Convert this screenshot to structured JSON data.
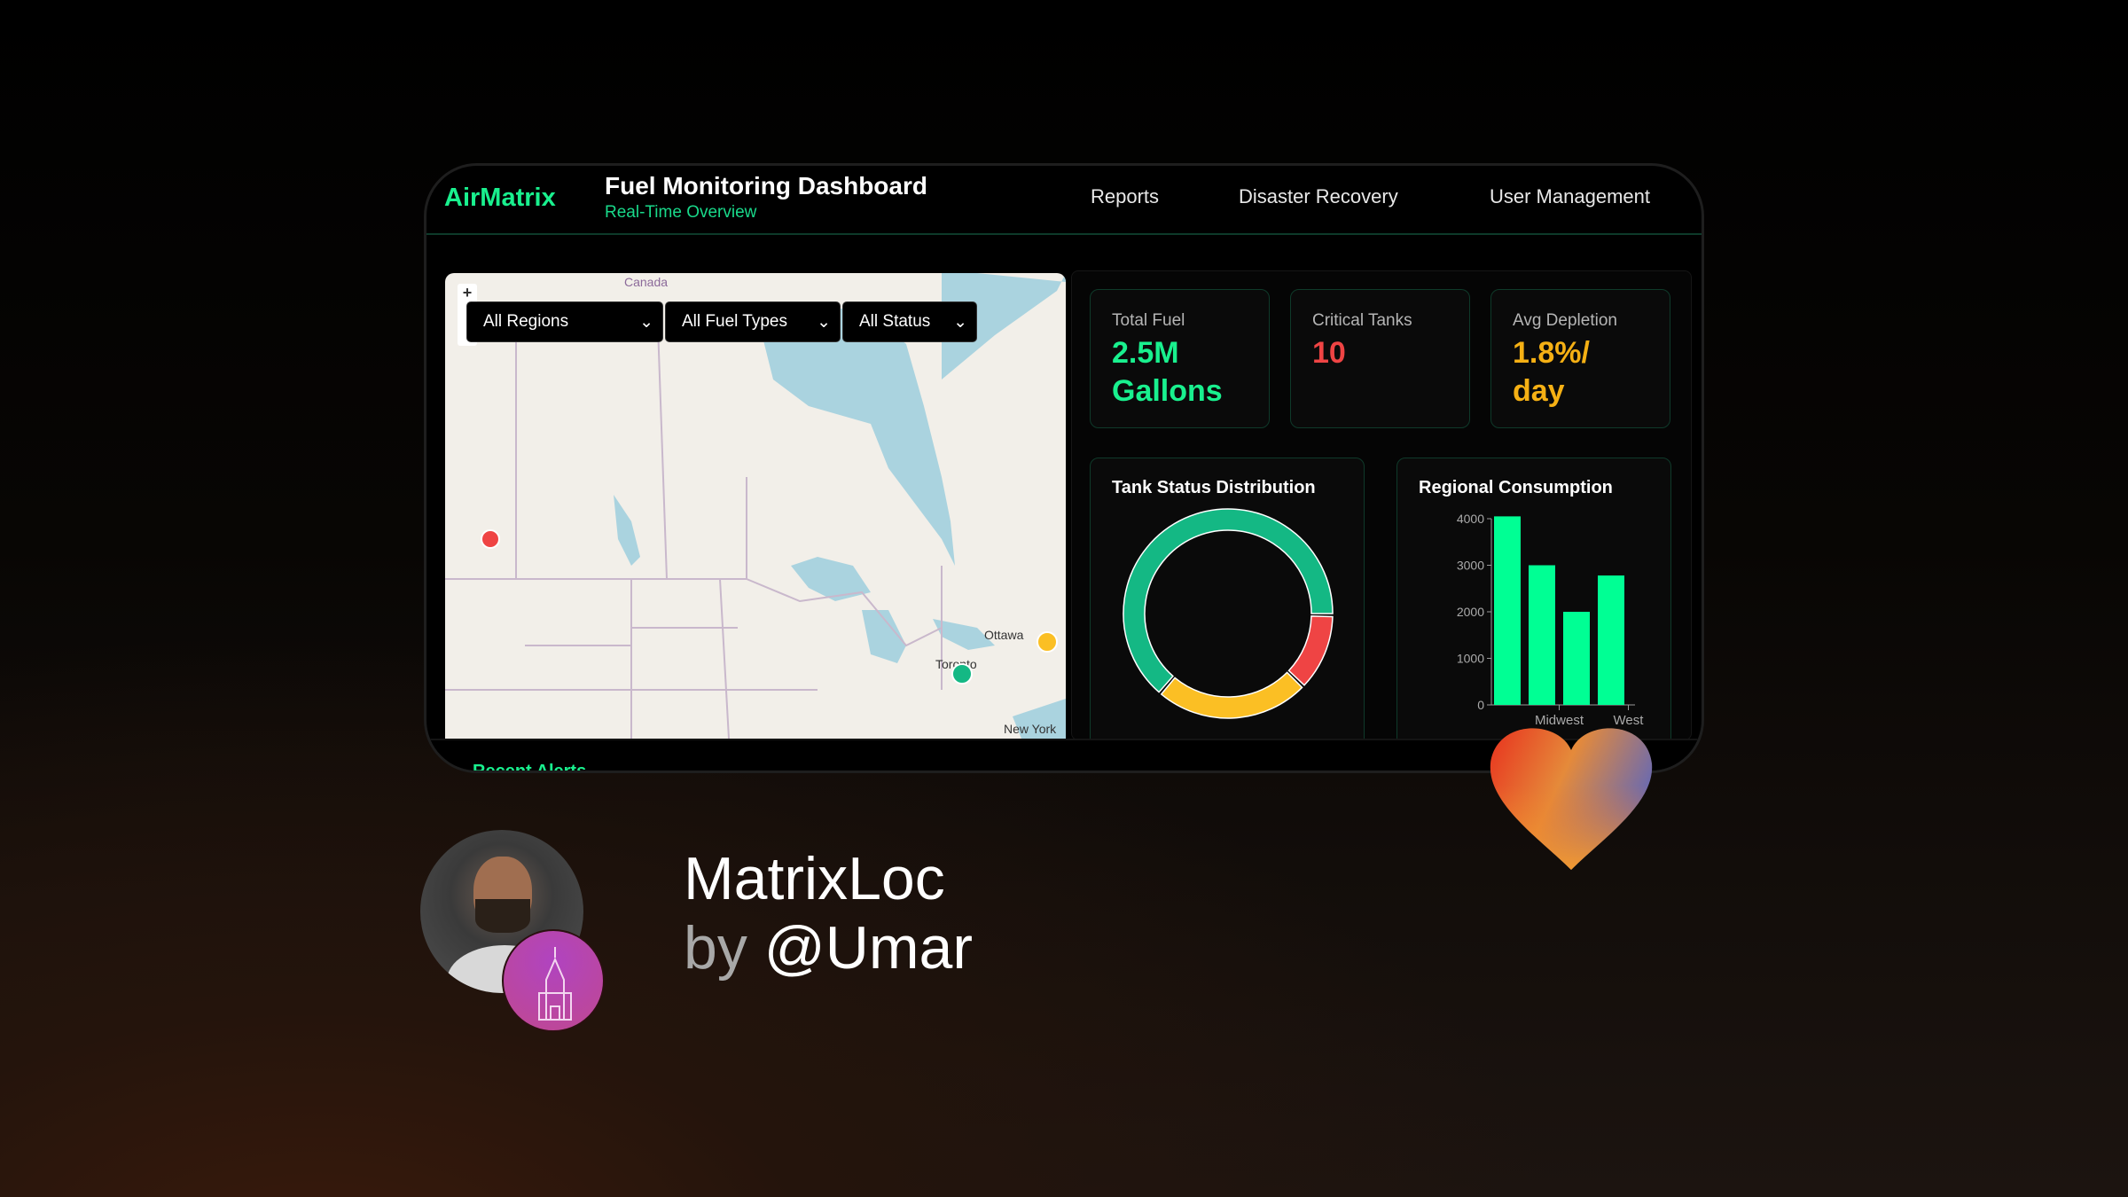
{
  "header": {
    "logo": "AirMatrix",
    "title": "Fuel Monitoring Dashboard",
    "subtitle": "Real-Time Overview",
    "nav": [
      "Reports",
      "Disaster Recovery",
      "User Management"
    ]
  },
  "map": {
    "filters": [
      "All Regions",
      "All Fuel Types",
      "All Status"
    ],
    "zoom_in": "+",
    "labels": {
      "country": "Canada",
      "city1": "Ottawa",
      "city2": "Toronto",
      "city3": "New York"
    },
    "markers": [
      {
        "status": "critical",
        "color": "#ef4444"
      },
      {
        "status": "warning",
        "color": "#fbbf24"
      },
      {
        "status": "normal",
        "color": "#14b884"
      }
    ]
  },
  "stats": [
    {
      "label": "Total Fuel",
      "value": "2.5M Gallons",
      "color": "#19f08e"
    },
    {
      "label": "Critical Tanks",
      "value": "10",
      "color": "#ef4444"
    },
    {
      "label": "Avg Depletion",
      "value": "1.8%/ day",
      "color": "#f5b014"
    }
  ],
  "chart_data": [
    {
      "type": "pie",
      "title": "Tank Status Distribution",
      "donut": true,
      "slices": [
        {
          "value": 64,
          "color": "#14b884"
        },
        {
          "value": 24,
          "color": "#fbbf24"
        },
        {
          "value": 12,
          "color": "#ef4444"
        }
      ]
    },
    {
      "type": "bar",
      "title": "Regional Consumption",
      "categories": [
        "",
        "Midwest",
        "",
        "West"
      ],
      "values": [
        4050,
        3000,
        2000,
        2780
      ],
      "ylim": [
        0,
        4000
      ],
      "yticks": [
        0,
        1000,
        2000,
        3000,
        4000
      ],
      "color": "#00ff94"
    }
  ],
  "alerts": {
    "title": "Recent Alerts"
  },
  "credit": {
    "name": "MatrixLoc",
    "by": "by",
    "handle": "@Umar"
  }
}
